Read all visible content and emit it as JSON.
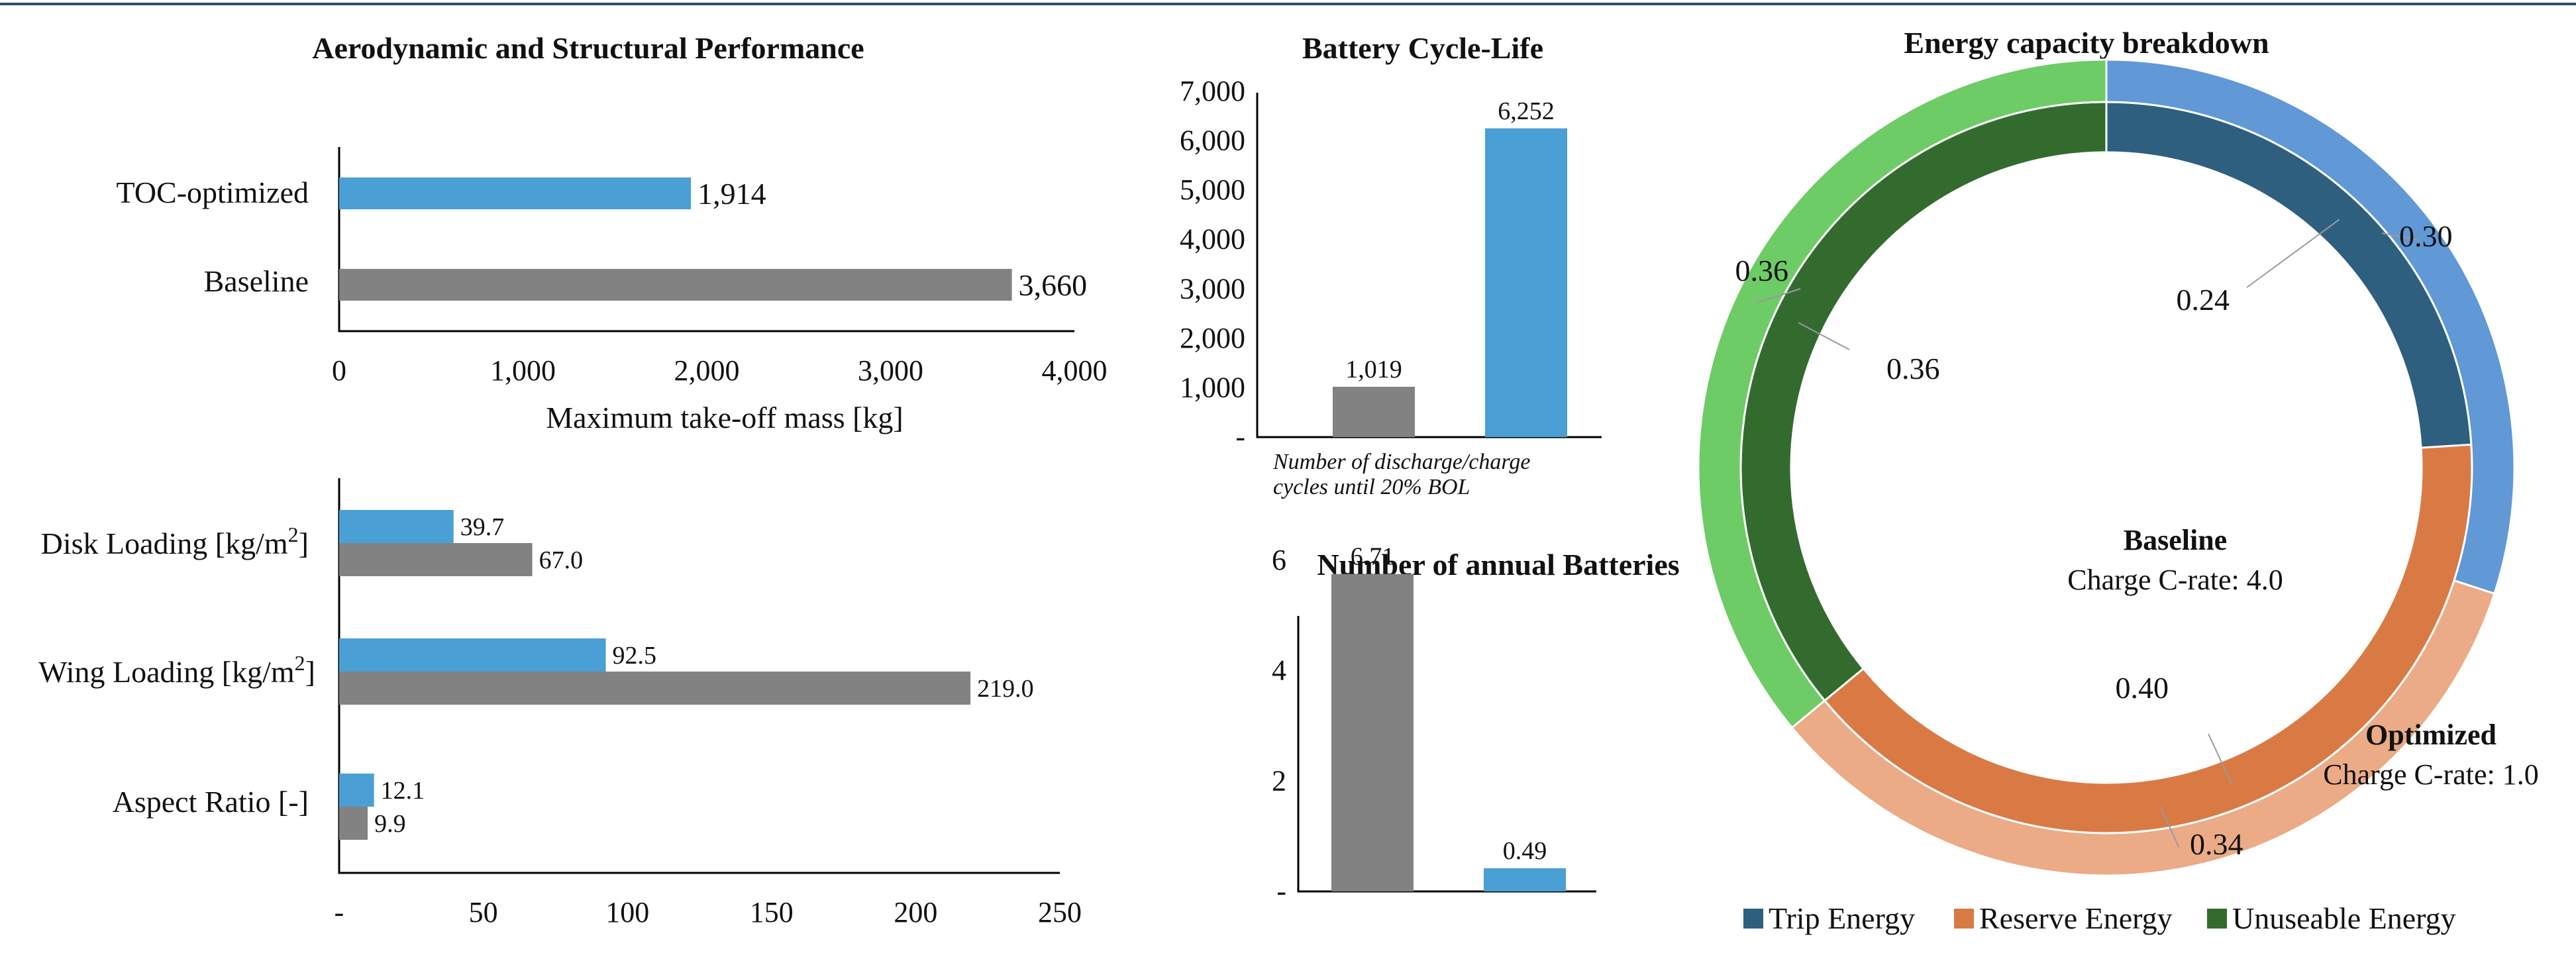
{
  "colors": {
    "blue": "#4a9fd5",
    "gray": "#828282",
    "trip_baseline": "#2e5f7f",
    "reserve_baseline": "#d97a45",
    "unuseable_baseline": "#336b2f",
    "trip_optimized": "#6198d6",
    "reserve_optimized": "#ebab86",
    "unuseable_optimized": "#6dcc65",
    "top_rule": "#2f4f63"
  },
  "chart_data": [
    {
      "id": "mtom",
      "type": "bar",
      "orientation": "horizontal",
      "title": "Aerodynamic and Structural Performance",
      "xlabel": "Maximum take-off mass [kg]",
      "ylabel": "",
      "xlim": [
        0,
        4000
      ],
      "xticks": [
        "0",
        "1,000",
        "2,000",
        "3,000",
        "4,000"
      ],
      "categories": [
        "TOC-optimized",
        "Baseline"
      ],
      "values": [
        1914,
        3660
      ],
      "value_labels": [
        "1,914",
        "3,660"
      ]
    },
    {
      "id": "loading",
      "type": "bar",
      "orientation": "horizontal",
      "xlim": [
        0,
        250
      ],
      "xticks": [
        "-",
        "50",
        "100",
        "150",
        "200",
        "250"
      ],
      "category_labels": [
        {
          "text": "Disk Loading [kg/m",
          "sup": "2",
          "tail": "]"
        },
        {
          "text": "Wing Loading [kg/m",
          "sup": "2",
          "tail": "]"
        },
        {
          "text": "Aspect Ratio [-]",
          "sup": "",
          "tail": ""
        }
      ],
      "series": [
        {
          "values": [
            39.7,
            92.5,
            12.1
          ],
          "labels": [
            "39.7",
            "92.5",
            "12.1"
          ]
        },
        {
          "values": [
            67.0,
            219.0,
            9.9
          ],
          "labels": [
            "67.0",
            "219.0",
            "9.9"
          ]
        }
      ]
    },
    {
      "id": "cycle_life",
      "type": "bar",
      "title": "Battery Cycle-Life",
      "ylim": [
        0,
        7000
      ],
      "yticks": [
        "-",
        "1,000",
        "2,000",
        "3,000",
        "4,000",
        "5,000",
        "6,000",
        "7,000"
      ],
      "note_lines": [
        "Number of discharge/charge",
        "cycles until 20% BOL"
      ],
      "values": [
        1019,
        6252
      ],
      "value_labels": [
        "1,019",
        "6,252"
      ]
    },
    {
      "id": "annual_batteries",
      "type": "bar",
      "title": "Number of annual Batteries",
      "ylim": [
        0,
        7
      ],
      "yticks": [
        "-",
        "2",
        "4",
        "6"
      ],
      "values": [
        6.71,
        0.49
      ],
      "value_labels": [
        "6.71",
        "0.49"
      ]
    },
    {
      "id": "energy",
      "type": "pie",
      "subtype": "donut",
      "title": "Energy capacity breakdown",
      "legend": [
        "Trip Energy",
        "Reserve Energy",
        "Unuseable Energy"
      ],
      "legend_position": "bottom",
      "rings": [
        {
          "name": "Baseline",
          "subtitle": "Charge C-rate: 4.0",
          "values": [
            0.24,
            0.4,
            0.36
          ],
          "labels": [
            "0.24",
            "0.40",
            "0.36"
          ]
        },
        {
          "name": "Optimized",
          "subtitle": "Charge C-rate: 1.0",
          "values": [
            0.3,
            0.34,
            0.36
          ],
          "labels": [
            "0.30",
            "0.34",
            "0.36"
          ]
        }
      ]
    }
  ]
}
